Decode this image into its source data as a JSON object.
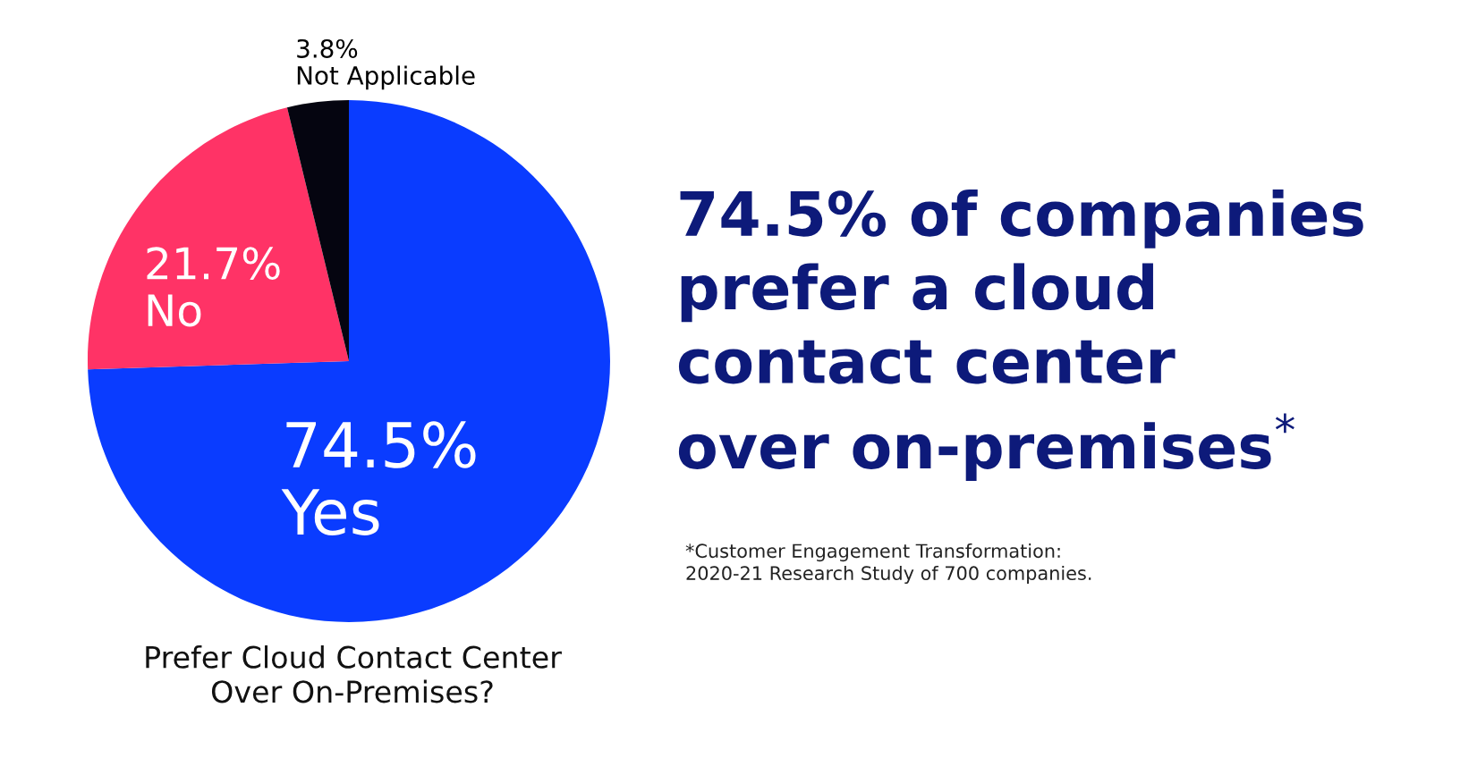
{
  "chart_data": {
    "type": "pie",
    "title": "Prefer Cloud Contact Center\nOver On-Premises?",
    "categories": [
      "Yes",
      "No",
      "Not Applicable"
    ],
    "values": [
      74.5,
      21.7,
      3.8
    ],
    "value_labels": [
      "74.5%",
      "21.7%",
      "3.8%"
    ],
    "colors": [
      "#0a3cff",
      "#ff3366",
      "#050510"
    ],
    "annotations": [
      "74.5% of companies\nprefer a cloud\ncontact center\nover on-premises$^{*}$",
      "*Customer Engagement Transformation:\n2020-21 Research Study of 700 companies."
    ]
  }
}
